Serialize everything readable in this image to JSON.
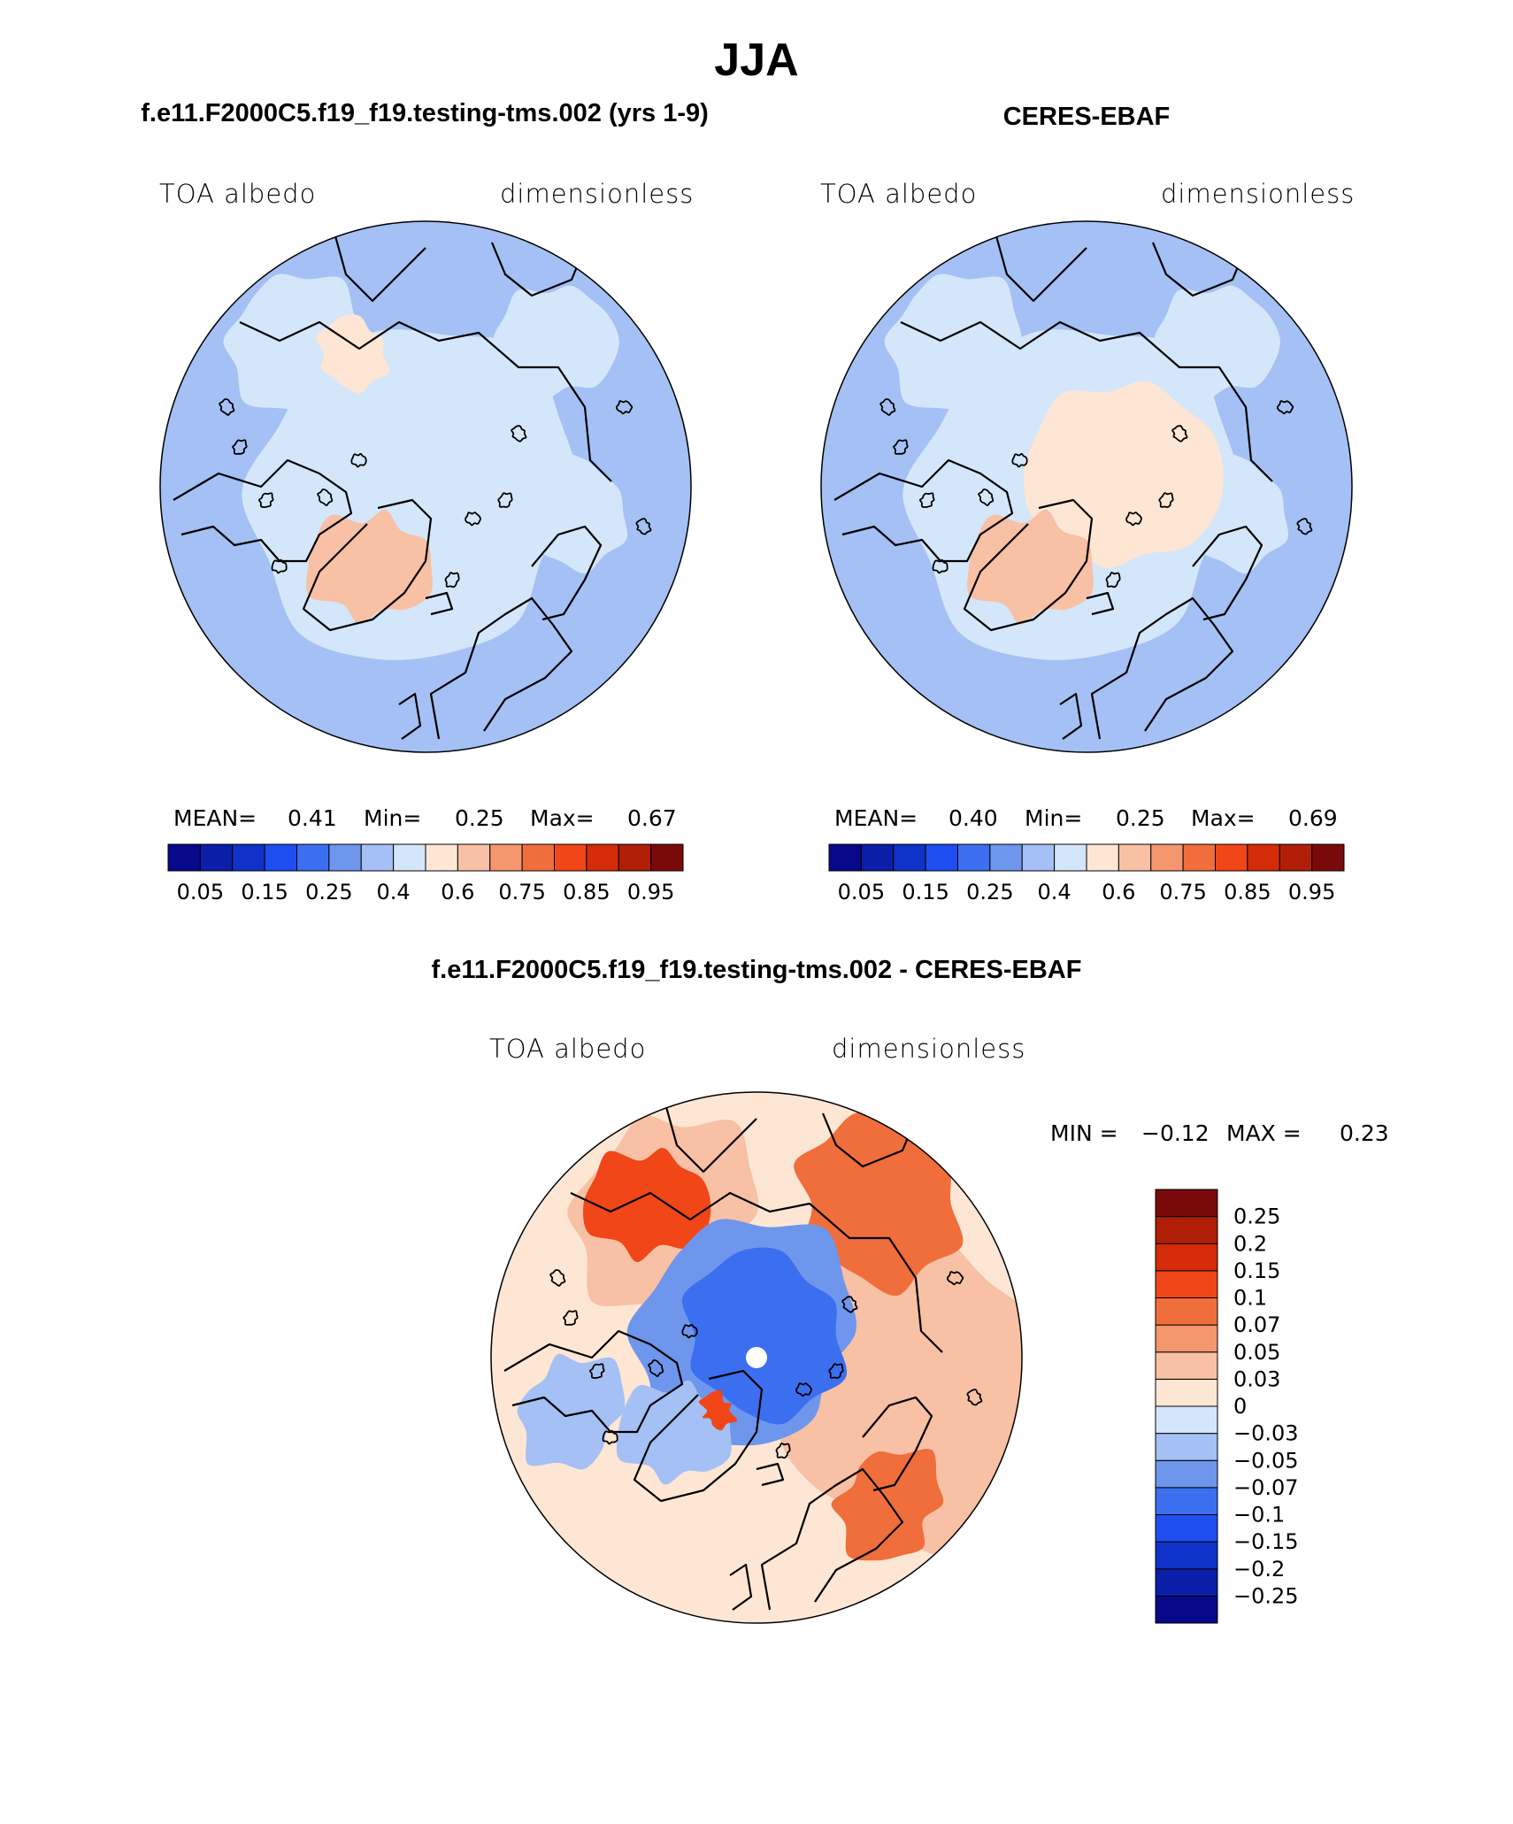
{
  "figure": {
    "season_title": "JJA",
    "colors": {
      "land_outline": "#000000",
      "diff_pole_hole": "#ffffff"
    }
  },
  "panels": {
    "model": {
      "title": "f.e11.F2000C5.f19_f19.testing-tms.002 (yrs 1-9)",
      "left_label": "TOA albedo",
      "right_label": "dimensionless",
      "stats": {
        "mean_label": "MEAN=",
        "mean": "0.41",
        "min_label": "Min=",
        "min": "0.25",
        "max_label": "Max=",
        "max": "0.67"
      }
    },
    "obs": {
      "title": "CERES-EBAF",
      "left_label": "TOA albedo",
      "right_label": "dimensionless",
      "stats": {
        "mean_label": "MEAN=",
        "mean": "0.40",
        "min_label": "Min=",
        "min": "0.25",
        "max_label": "Max=",
        "max": "0.69"
      }
    },
    "diff": {
      "title": "f.e11.F2000C5.f19_f19.testing-tms.002 - CERES-EBAF",
      "left_label": "TOA albedo",
      "right_label": "dimensionless",
      "stats": {
        "min_label": "MIN =",
        "min": "−0.12",
        "max_label": "MAX =",
        "max": "0.23"
      }
    }
  },
  "chart_data": [
    {
      "type": "heatmap",
      "projection": "north-polar-stereographic",
      "name": "model",
      "title": "f.e11.F2000C5.f19_f19.testing-tms.002 (yrs 1-9)",
      "variable": "TOA albedo",
      "units": "dimensionless",
      "colorbar": {
        "orientation": "horizontal",
        "levels": [
          0.05,
          0.1,
          0.15,
          0.2,
          0.25,
          0.3,
          0.4,
          0.5,
          0.6,
          0.7,
          0.75,
          0.8,
          0.85,
          0.9,
          0.95
        ],
        "tick_labels": [
          "0.05",
          "0.15",
          "0.25",
          "0.4",
          "0.6",
          "0.75",
          "0.85",
          "0.95"
        ],
        "colors": [
          "#08088a",
          "#0a1ea8",
          "#0f32c8",
          "#1e4ef0",
          "#3c6ef0",
          "#6e96ec",
          "#a4c0f4",
          "#d4e6fa",
          "#fee6d4",
          "#f8c0a4",
          "#f4966e",
          "#f06e3c",
          "#f04618",
          "#d42c08",
          "#b01e08",
          "#7a0a0a"
        ]
      },
      "field": {
        "background_value": 0.35,
        "ocean_mid_value": 0.35,
        "arctic_value": 0.45,
        "greenland_value": 0.62
      }
    },
    {
      "type": "heatmap",
      "projection": "north-polar-stereographic",
      "name": "obs",
      "title": "CERES-EBAF",
      "variable": "TOA albedo",
      "units": "dimensionless",
      "colorbar": {
        "orientation": "horizontal",
        "levels": [
          0.05,
          0.1,
          0.15,
          0.2,
          0.25,
          0.3,
          0.4,
          0.5,
          0.6,
          0.7,
          0.75,
          0.8,
          0.85,
          0.9,
          0.95
        ],
        "tick_labels": [
          "0.05",
          "0.15",
          "0.25",
          "0.4",
          "0.6",
          "0.75",
          "0.85",
          "0.95"
        ],
        "colors": [
          "#08088a",
          "#0a1ea8",
          "#0f32c8",
          "#1e4ef0",
          "#3c6ef0",
          "#6e96ec",
          "#a4c0f4",
          "#d4e6fa",
          "#fee6d4",
          "#f8c0a4",
          "#f4966e",
          "#f06e3c",
          "#f04618",
          "#d42c08",
          "#b01e08",
          "#7a0a0a"
        ]
      },
      "field": {
        "background_value": 0.35,
        "arctic_value": 0.55,
        "greenland_value": 0.62
      }
    },
    {
      "type": "heatmap",
      "projection": "north-polar-stereographic",
      "name": "difference",
      "title": "f.e11.F2000C5.f19_f19.testing-tms.002 - CERES-EBAF",
      "variable": "TOA albedo",
      "units": "dimensionless",
      "colorbar": {
        "orientation": "vertical",
        "levels": [
          -0.25,
          -0.2,
          -0.15,
          -0.1,
          -0.07,
          -0.05,
          -0.03,
          0,
          0.03,
          0.05,
          0.07,
          0.1,
          0.15,
          0.2,
          0.25
        ],
        "tick_labels": [
          "−0.25",
          "−0.2",
          "−0.15",
          "−0.1",
          "−0.07",
          "−0.05",
          "−0.03",
          "0",
          "0.03",
          "0.05",
          "0.07",
          "0.1",
          "0.15",
          "0.2",
          "0.25"
        ],
        "colors": [
          "#08088a",
          "#0a1ea8",
          "#0f32c8",
          "#1e4ef0",
          "#3c6ef0",
          "#6e96ec",
          "#a4c0f4",
          "#d4e6fa",
          "#fee6d4",
          "#f8c0a4",
          "#f4966e",
          "#f06e3c",
          "#f04618",
          "#d42c08",
          "#b01e08",
          "#7a0a0a"
        ]
      },
      "field": {
        "background_value": 0.02,
        "arctic_value": -0.08,
        "pole_missing": true
      }
    }
  ]
}
